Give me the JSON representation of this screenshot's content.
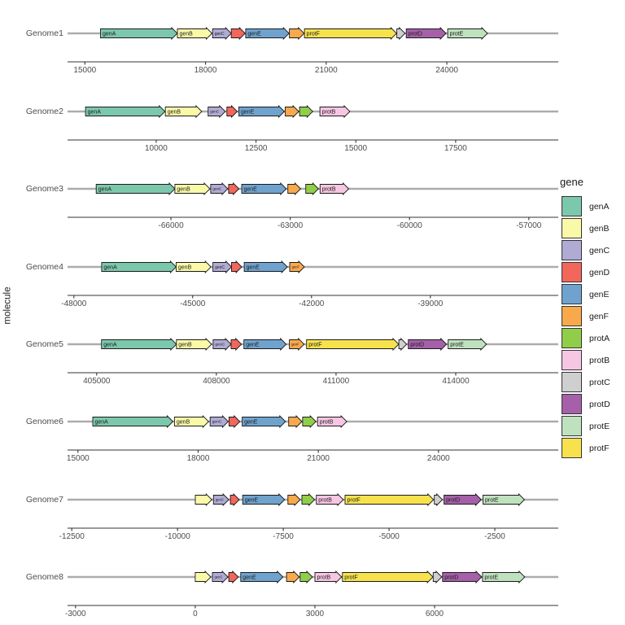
{
  "figure": {
    "y_axis_title": "molecule",
    "legend_title": "gene",
    "styles": {
      "molecule_line_color": "#ACACAC",
      "axis_line_color": "#333333",
      "axis_text_color": "#4d4d4d",
      "facet_label_color": "#4d4d4d",
      "gene_outline_color": "#1a1a1a",
      "gene_label_color": "#1a1a1a",
      "background": "#ffffff"
    }
  },
  "chart_data": {
    "type": "gene_arrow_map",
    "title": "",
    "xlabel": "",
    "ylabel": "molecule",
    "legend_title": "gene",
    "legend_position": "right",
    "grid": false,
    "facet_scales": "free_x",
    "legend_genes": [
      {
        "name": "genA",
        "color": "#7CC8AC"
      },
      {
        "name": "genB",
        "color": "#F9F9A8"
      },
      {
        "name": "genC",
        "color": "#AFABD3"
      },
      {
        "name": "genD",
        "color": "#F2665C"
      },
      {
        "name": "genE",
        "color": "#6FA3CE"
      },
      {
        "name": "genF",
        "color": "#F8A94C"
      },
      {
        "name": "protA",
        "color": "#90CE49"
      },
      {
        "name": "protB",
        "color": "#F7C6E2"
      },
      {
        "name": "protC",
        "color": "#CFCFCF"
      },
      {
        "name": "protD",
        "color": "#A560A9"
      },
      {
        "name": "protE",
        "color": "#BFE2BE"
      },
      {
        "name": "protF",
        "color": "#F7E24D"
      }
    ],
    "facets": [
      {
        "molecule": "Genome1",
        "xlim": [
          14570,
          26770
        ],
        "ticks": [
          15000,
          18000,
          21000,
          24000
        ],
        "genes": [
          {
            "gene": "genA",
            "start": 15389,
            "end": 17299,
            "label_shown": true
          },
          {
            "gene": "genB",
            "start": 17301,
            "end": 18161,
            "label_shown": true
          },
          {
            "gene": "genC",
            "start": 18176,
            "end": 18640,
            "label_shown": true
          },
          {
            "gene": "genD",
            "start": 18641,
            "end": 18985,
            "label_shown": false
          },
          {
            "gene": "genE",
            "start": 18999,
            "end": 20078,
            "label_shown": true
          },
          {
            "gene": "genF",
            "start": 20086,
            "end": 20451,
            "label_shown": false
          },
          {
            "gene": "protF",
            "start": 20460,
            "end": 22750,
            "label_shown": true
          },
          {
            "gene": "protC",
            "start": 22755,
            "end": 22960,
            "label_shown": false
          },
          {
            "gene": "protD",
            "start": 22990,
            "end": 23980,
            "label_shown": true
          },
          {
            "gene": "protE",
            "start": 24020,
            "end": 25010,
            "label_shown": true
          }
        ]
      },
      {
        "molecule": "Genome2",
        "xlim": [
          7780,
          20070
        ],
        "ticks": [
          10000,
          12500,
          15000,
          17500
        ],
        "genes": [
          {
            "gene": "genA",
            "start": 8230,
            "end": 10220,
            "label_shown": true
          },
          {
            "gene": "genB",
            "start": 10230,
            "end": 11140,
            "label_shown": true
          },
          {
            "gene": "genC",
            "start": 11300,
            "end": 11730,
            "label_shown": true
          },
          {
            "gene": "genD",
            "start": 11770,
            "end": 12030,
            "label_shown": false
          },
          {
            "gene": "genE",
            "start": 12070,
            "end": 13210,
            "label_shown": true
          },
          {
            "gene": "genF",
            "start": 13230,
            "end": 13570,
            "label_shown": false
          },
          {
            "gene": "protA",
            "start": 13590,
            "end": 13920,
            "label_shown": false
          },
          {
            "gene": "protB",
            "start": 14100,
            "end": 14850,
            "label_shown": true
          }
        ]
      },
      {
        "molecule": "Genome3",
        "xlim": [
          -68600,
          -56260
        ],
        "ticks": [
          -66000,
          -63000,
          -60000,
          -57000
        ],
        "genes": [
          {
            "gene": "genA",
            "start": -67880,
            "end": -65900,
            "label_shown": true
          },
          {
            "gene": "genB",
            "start": -65900,
            "end": -65020,
            "label_shown": true
          },
          {
            "gene": "genC",
            "start": -65000,
            "end": -64570,
            "label_shown": true
          },
          {
            "gene": "genD",
            "start": -64550,
            "end": -64290,
            "label_shown": false
          },
          {
            "gene": "genE",
            "start": -64220,
            "end": -63100,
            "label_shown": true
          },
          {
            "gene": "genF",
            "start": -63060,
            "end": -62740,
            "label_shown": false
          },
          {
            "gene": "protA",
            "start": -62610,
            "end": -62290,
            "label_shown": false
          },
          {
            "gene": "protB",
            "start": -62250,
            "end": -61530,
            "label_shown": true
          }
        ]
      },
      {
        "molecule": "Genome4",
        "xlim": [
          -48160,
          -35770
        ],
        "ticks": [
          -48000,
          -45000,
          -42000,
          -39000
        ],
        "genes": [
          {
            "gene": "genA",
            "start": -47300,
            "end": -45420,
            "label_shown": true
          },
          {
            "gene": "genB",
            "start": -45420,
            "end": -44540,
            "label_shown": true
          },
          {
            "gene": "genC",
            "start": -44490,
            "end": -44020,
            "label_shown": true
          },
          {
            "gene": "genD",
            "start": -44020,
            "end": -43760,
            "label_shown": false
          },
          {
            "gene": "genE",
            "start": -43700,
            "end": -42610,
            "label_shown": true
          },
          {
            "gene": "genF",
            "start": -42550,
            "end": -42180,
            "label_shown": true
          }
        ]
      },
      {
        "molecule": "Genome5",
        "xlim": [
          404270,
          416570
        ],
        "ticks": [
          405000,
          408000,
          411000,
          414000
        ],
        "genes": [
          {
            "gene": "genA",
            "start": 405120,
            "end": 407000,
            "label_shown": true
          },
          {
            "gene": "genB",
            "start": 407000,
            "end": 407880,
            "label_shown": true
          },
          {
            "gene": "genC",
            "start": 407920,
            "end": 408370,
            "label_shown": true
          },
          {
            "gene": "genD",
            "start": 408370,
            "end": 408630,
            "label_shown": false
          },
          {
            "gene": "genE",
            "start": 408690,
            "end": 409750,
            "label_shown": true
          },
          {
            "gene": "genF",
            "start": 409830,
            "end": 410200,
            "label_shown": true
          },
          {
            "gene": "protF",
            "start": 410260,
            "end": 412570,
            "label_shown": true
          },
          {
            "gene": "protC",
            "start": 412575,
            "end": 412770,
            "label_shown": false
          },
          {
            "gene": "protD",
            "start": 412810,
            "end": 413770,
            "label_shown": true
          },
          {
            "gene": "protE",
            "start": 413810,
            "end": 414770,
            "label_shown": true
          }
        ]
      },
      {
        "molecule": "Genome6",
        "xlim": [
          14740,
          26990
        ],
        "ticks": [
          15000,
          18000,
          21000,
          24000
        ],
        "genes": [
          {
            "gene": "genA",
            "start": 15370,
            "end": 17370,
            "label_shown": true
          },
          {
            "gene": "genB",
            "start": 17410,
            "end": 18260,
            "label_shown": true
          },
          {
            "gene": "genC",
            "start": 18300,
            "end": 18750,
            "label_shown": true
          },
          {
            "gene": "genD",
            "start": 18770,
            "end": 19040,
            "label_shown": false
          },
          {
            "gene": "genE",
            "start": 19100,
            "end": 20180,
            "label_shown": true
          },
          {
            "gene": "genF",
            "start": 20260,
            "end": 20590,
            "label_shown": false
          },
          {
            "gene": "protA",
            "start": 20610,
            "end": 20940,
            "label_shown": false
          },
          {
            "gene": "protB",
            "start": 20980,
            "end": 21710,
            "label_shown": true
          }
        ]
      },
      {
        "molecule": "Genome7",
        "xlim": [
          -12600,
          -1000
        ],
        "ticks": [
          -12500,
          -10000,
          -7500,
          -5000,
          -2500
        ],
        "genes": [
          {
            "gene": "genB",
            "start": -9580,
            "end": -9190,
            "label_shown": false
          },
          {
            "gene": "genC",
            "start": -9150,
            "end": -8790,
            "label_shown": true
          },
          {
            "gene": "genD",
            "start": -8750,
            "end": -8540,
            "label_shown": false
          },
          {
            "gene": "genE",
            "start": -8460,
            "end": -7470,
            "label_shown": true
          },
          {
            "gene": "genF",
            "start": -7390,
            "end": -7100,
            "label_shown": false
          },
          {
            "gene": "protA",
            "start": -7060,
            "end": -6760,
            "label_shown": false
          },
          {
            "gene": "protB",
            "start": -6720,
            "end": -6080,
            "label_shown": true
          },
          {
            "gene": "protF",
            "start": -6040,
            "end": -3950,
            "label_shown": true
          },
          {
            "gene": "protC",
            "start": -3930,
            "end": -3740,
            "label_shown": false
          },
          {
            "gene": "protD",
            "start": -3700,
            "end": -2820,
            "label_shown": true
          },
          {
            "gene": "protE",
            "start": -2780,
            "end": -1800,
            "label_shown": true
          }
        ]
      },
      {
        "molecule": "Genome8",
        "xlim": [
          -3200,
          9100
        ],
        "ticks": [
          -3000,
          0,
          3000,
          6000
        ],
        "genes": [
          {
            "gene": "genB",
            "start": 0,
            "end": 390,
            "label_shown": false
          },
          {
            "gene": "genC",
            "start": 430,
            "end": 820,
            "label_shown": true
          },
          {
            "gene": "genD",
            "start": 840,
            "end": 1080,
            "label_shown": false
          },
          {
            "gene": "genE",
            "start": 1140,
            "end": 2200,
            "label_shown": true
          },
          {
            "gene": "genF",
            "start": 2290,
            "end": 2610,
            "label_shown": false
          },
          {
            "gene": "protA",
            "start": 2630,
            "end": 2940,
            "label_shown": false
          },
          {
            "gene": "protB",
            "start": 3000,
            "end": 3670,
            "label_shown": true
          },
          {
            "gene": "protF",
            "start": 3690,
            "end": 5960,
            "label_shown": true
          },
          {
            "gene": "protC",
            "start": 5965,
            "end": 6180,
            "label_shown": false
          },
          {
            "gene": "protD",
            "start": 6200,
            "end": 7180,
            "label_shown": true
          },
          {
            "gene": "protE",
            "start": 7200,
            "end": 8260,
            "label_shown": true
          }
        ]
      }
    ]
  }
}
